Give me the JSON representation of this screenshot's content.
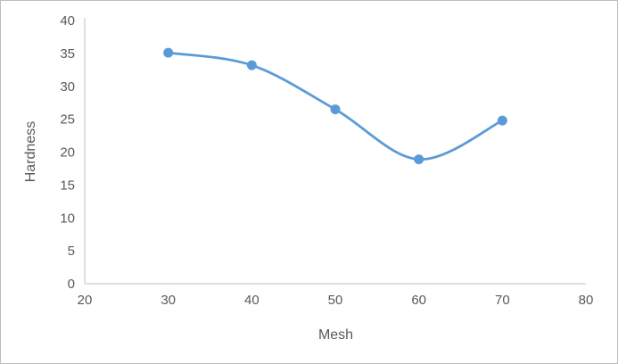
{
  "chart_data": {
    "type": "line",
    "x": [
      30,
      40,
      50,
      60,
      70
    ],
    "series": [
      {
        "name": "Hardness",
        "values": [
          35.1,
          33.2,
          26.5,
          18.9,
          24.8
        ]
      }
    ],
    "title": "",
    "xlabel": "Mesh",
    "ylabel": "Hardness",
    "xlim": [
      20,
      80
    ],
    "ylim": [
      0,
      40
    ],
    "x_ticks": [
      20,
      30,
      40,
      50,
      60,
      70,
      80
    ],
    "y_ticks": [
      0,
      5,
      10,
      15,
      20,
      25,
      30,
      35,
      40
    ],
    "grid": "off",
    "legend": "none",
    "smooth": true,
    "marker": "circle",
    "line_color": "#5B9BD5"
  },
  "styles": {
    "tick_color": "#595959",
    "axis_color": "#BFBFBF",
    "border_color": "#BDBDBD",
    "background": "#FFFFFF",
    "tick_font_size": 15,
    "marker_radius": 5.5,
    "line_width": 2.75
  }
}
